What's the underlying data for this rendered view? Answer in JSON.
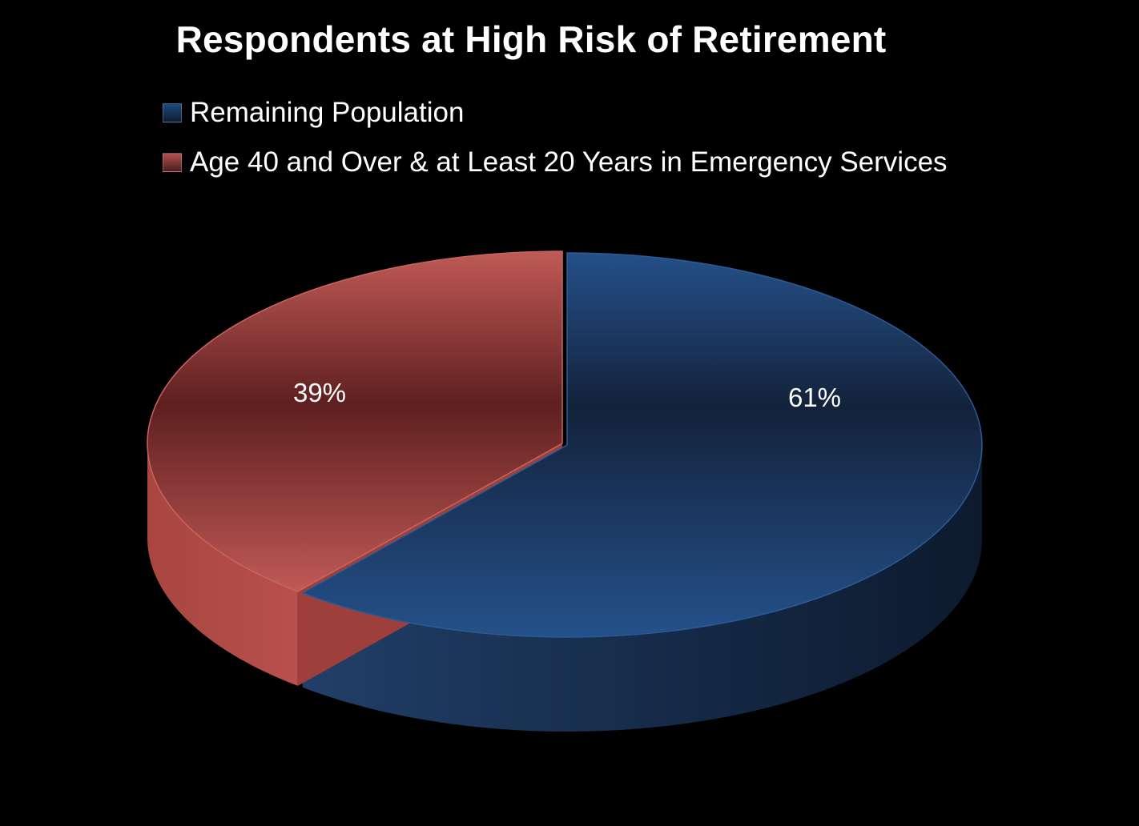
{
  "chart_data": {
    "type": "pie",
    "title": "Respondents at High Risk of Retirement",
    "legend_position": "top",
    "slices": [
      {
        "label": "Remaining Population",
        "value": 61,
        "display": "61%",
        "color": "#1f4a80"
      },
      {
        "label": "Age 40 and Over & at Least 20 Years in Emergency Services",
        "value": 39,
        "display": "39%",
        "color": "#b8504d"
      }
    ]
  }
}
